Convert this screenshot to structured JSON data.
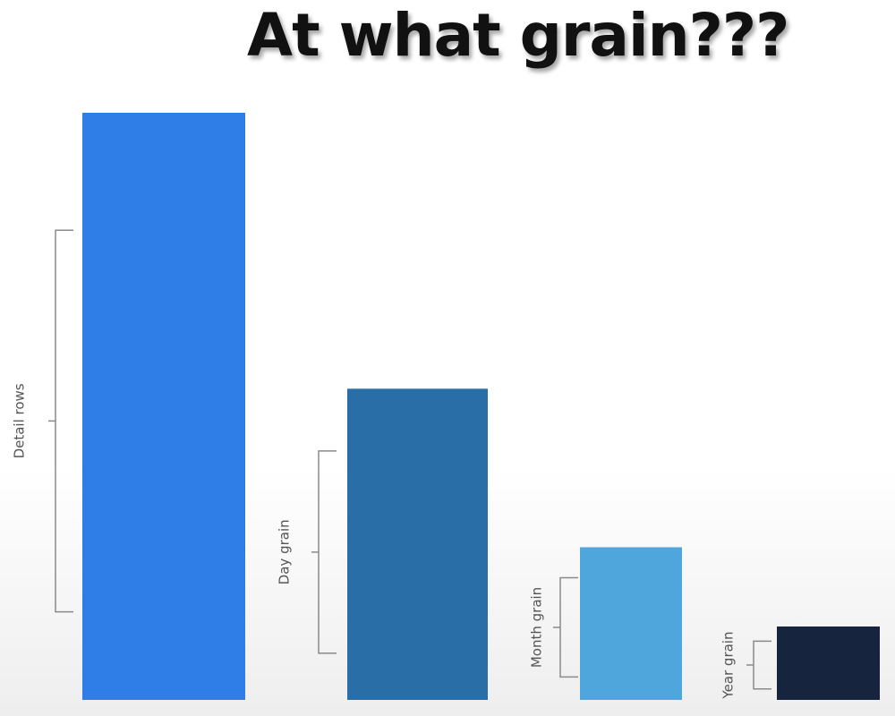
{
  "title": "At what grain???",
  "chart_data": {
    "type": "bar",
    "categories": [
      "Detail rows",
      "Day grain",
      "Month grain",
      "Year grain"
    ],
    "values": [
      100,
      53,
      26,
      12.5
    ],
    "ylim": [
      0,
      100
    ],
    "colors": [
      "#2f7de6",
      "#2a6ea8",
      "#4ea6dc",
      "#16243d"
    ],
    "xlabel": "",
    "ylabel": ""
  }
}
